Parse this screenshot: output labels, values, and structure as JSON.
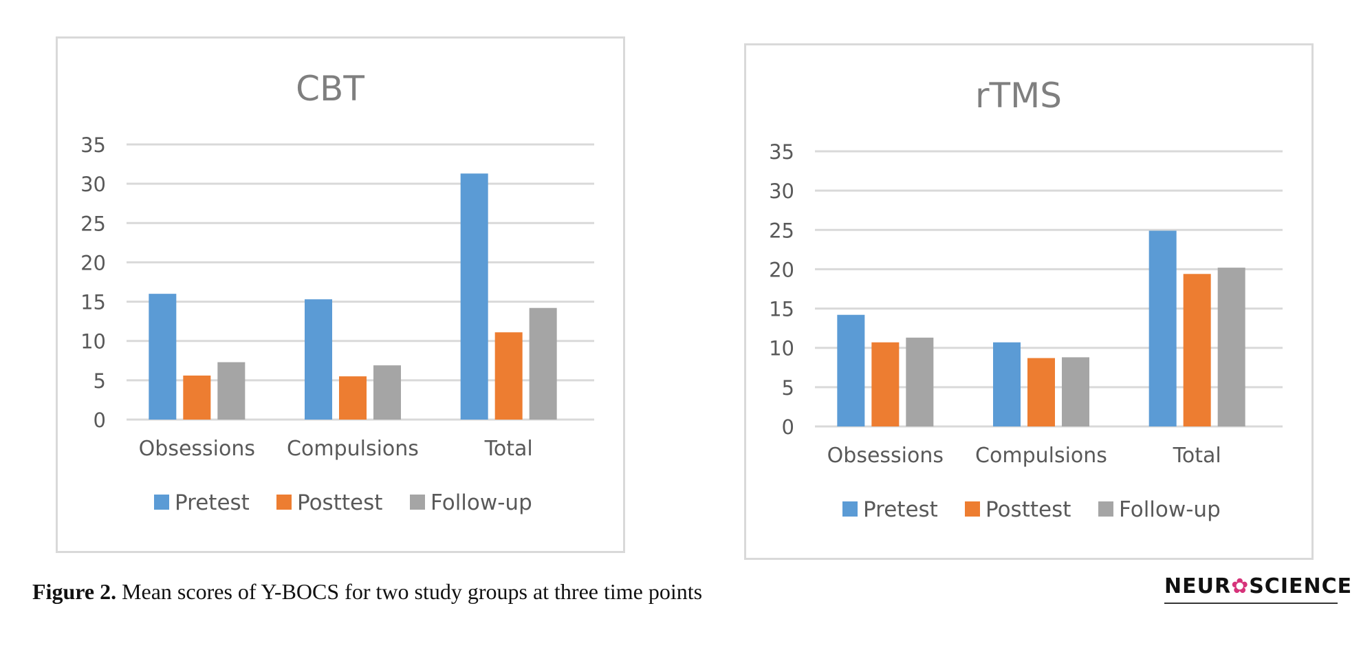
{
  "figure_caption": {
    "label": "Figure 2.",
    "text": " Mean scores of Y-BOCS for two study groups at three time points"
  },
  "logo": {
    "text_before": "NEUR",
    "icon": "neuron-icon",
    "text_after": "SCIENCE"
  },
  "colors": {
    "pretest": "#5b9bd5",
    "posttest": "#ed7d31",
    "followup": "#a5a5a5",
    "grid": "#d9d9d9"
  },
  "chart_data": [
    {
      "type": "bar",
      "title": "CBT",
      "categories": [
        "Obsessions",
        "Compulsions",
        "Total"
      ],
      "series": [
        {
          "name": "Pretest",
          "values": [
            16.0,
            15.3,
            31.3
          ]
        },
        {
          "name": "Posttest",
          "values": [
            5.6,
            5.5,
            11.1
          ]
        },
        {
          "name": "Follow-up",
          "values": [
            7.3,
            6.9,
            14.2
          ]
        }
      ],
      "ylim": [
        0,
        35
      ],
      "yticks": [
        0,
        5,
        10,
        15,
        20,
        25,
        30,
        35
      ],
      "grid": true,
      "legend_position": "bottom"
    },
    {
      "type": "bar",
      "title": "rTMS",
      "categories": [
        "Obsessions",
        "Compulsions",
        "Total"
      ],
      "series": [
        {
          "name": "Pretest",
          "values": [
            14.2,
            10.7,
            24.9
          ]
        },
        {
          "name": "Posttest",
          "values": [
            10.7,
            8.7,
            19.4
          ]
        },
        {
          "name": "Follow-up",
          "values": [
            11.3,
            8.8,
            20.2
          ]
        }
      ],
      "ylim": [
        0,
        35
      ],
      "yticks": [
        0,
        5,
        10,
        15,
        20,
        25,
        30,
        35
      ],
      "grid": true,
      "legend_position": "bottom"
    }
  ]
}
